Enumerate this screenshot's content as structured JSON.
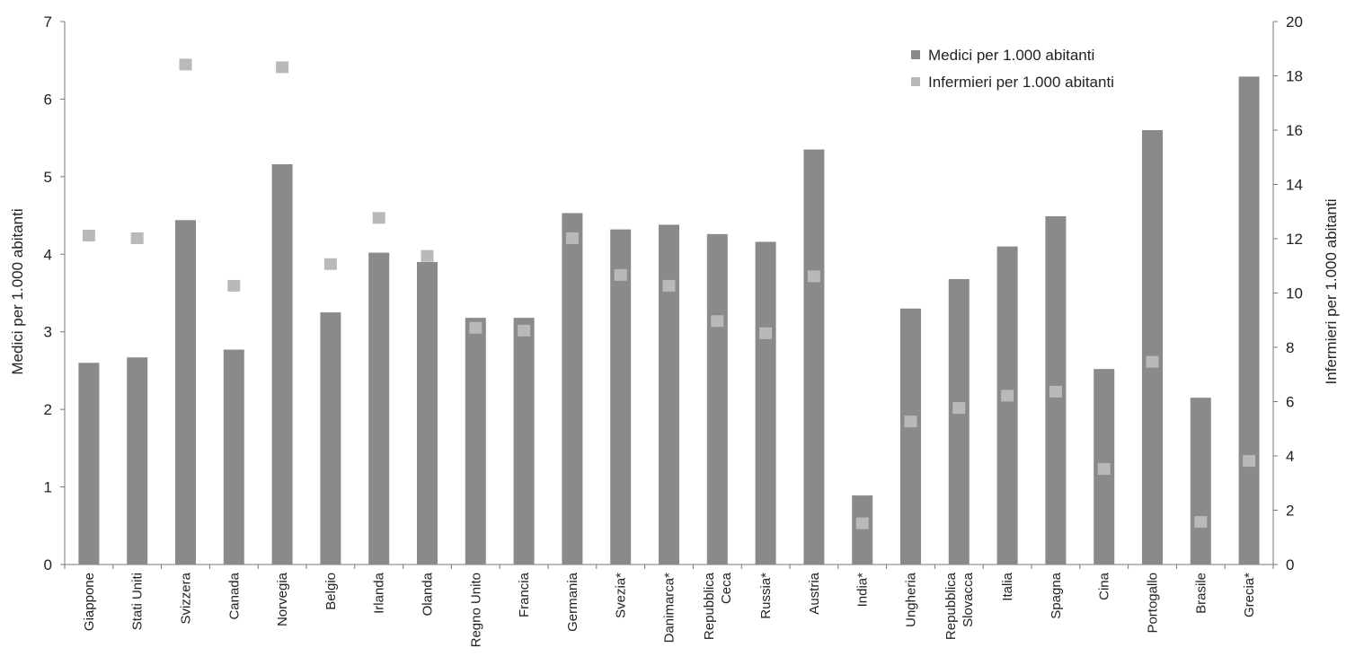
{
  "chart_data": {
    "type": "bar",
    "categories": [
      [
        "Giappone"
      ],
      [
        "Stati Uniti"
      ],
      [
        "Svizzera"
      ],
      [
        "Canada"
      ],
      [
        "Norvegia"
      ],
      [
        "Belgio"
      ],
      [
        "Irlanda"
      ],
      [
        "Olanda"
      ],
      [
        "Regno Unito"
      ],
      [
        "Francia"
      ],
      [
        "Germania"
      ],
      [
        "Svezia*"
      ],
      [
        "Danimarca*"
      ],
      [
        "Repubblica",
        "Ceca"
      ],
      [
        "Russia*"
      ],
      [
        "Austria"
      ],
      [
        "India*"
      ],
      [
        "Ungheria"
      ],
      [
        "Repubblica",
        "Slovacca"
      ],
      [
        "Italia"
      ],
      [
        "Spagna"
      ],
      [
        "Cina"
      ],
      [
        "Portogallo"
      ],
      [
        "Brasile"
      ],
      [
        "Grecia*"
      ]
    ],
    "series": [
      {
        "name": "Medici per 1.000 abitanti",
        "type": "bar",
        "axis": "left",
        "color": "#8a8a8a",
        "values": [
          2.6,
          2.67,
          4.44,
          2.77,
          5.16,
          3.25,
          4.02,
          3.9,
          3.18,
          3.18,
          4.53,
          4.32,
          4.38,
          4.26,
          4.16,
          5.35,
          0.89,
          3.3,
          3.68,
          4.1,
          4.49,
          2.52,
          5.6,
          2.15,
          6.29
        ]
      },
      {
        "name": "Infermieri per 1.000 abitanti",
        "type": "scatter",
        "axis": "right",
        "color": "#b9b9b9",
        "values": [
          12.1,
          12.0,
          18.4,
          10.25,
          18.3,
          11.05,
          12.75,
          11.35,
          8.7,
          8.6,
          12.0,
          10.65,
          10.25,
          8.95,
          8.5,
          10.6,
          1.5,
          5.25,
          5.75,
          6.2,
          6.35,
          3.5,
          7.45,
          1.55,
          3.8
        ]
      }
    ],
    "ylabel": "Medici per 1.000 abitanti",
    "y2label": "Infermieri per 1.000 abitanti",
    "ylim": [
      0,
      7
    ],
    "y2lim": [
      0,
      20
    ],
    "yticks": [
      "0",
      "1",
      "2",
      "3",
      "4",
      "5",
      "6",
      "7"
    ],
    "y2ticks": [
      "0",
      "2",
      "4",
      "6",
      "8",
      "10",
      "12",
      "14",
      "16",
      "18",
      "20"
    ],
    "legend_position": "top-right",
    "grid": false
  }
}
